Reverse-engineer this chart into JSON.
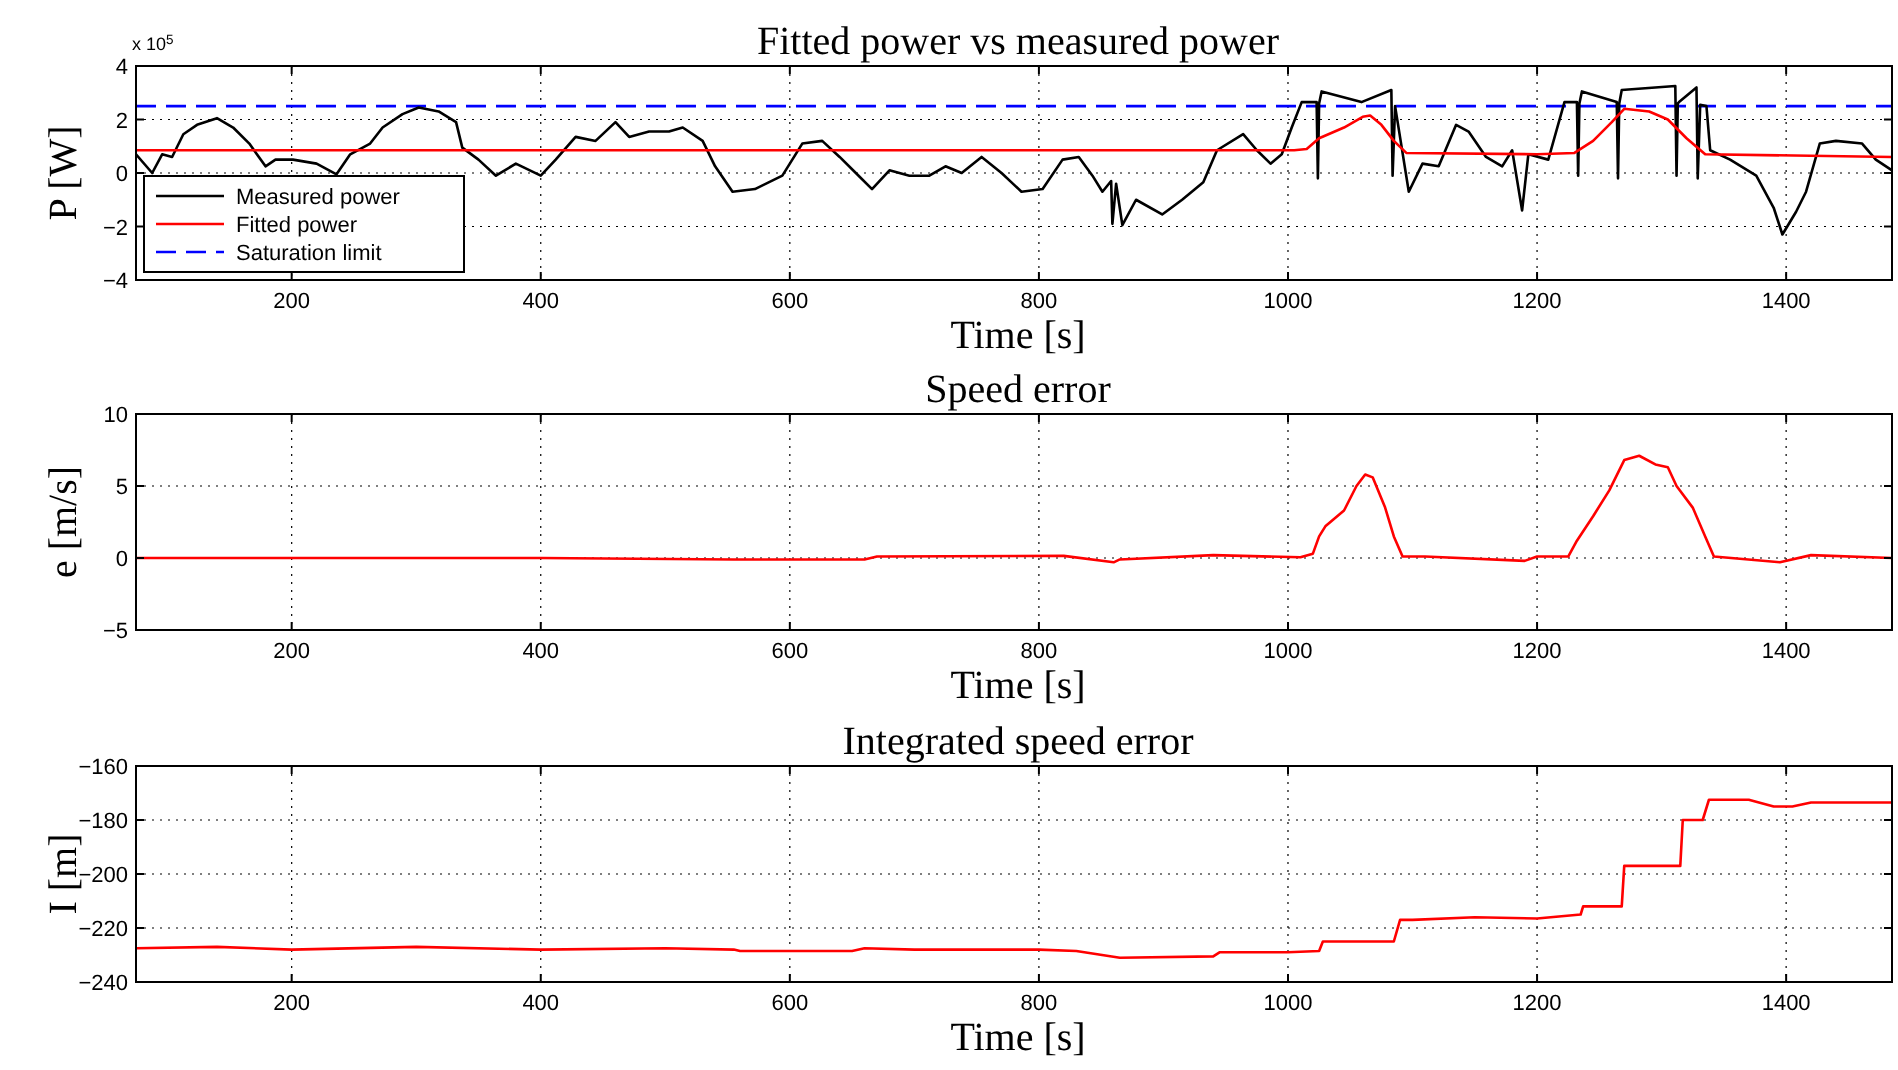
{
  "chart_data": [
    {
      "type": "line",
      "title": "Fitted power vs measured power",
      "xlabel": "Time [s]",
      "ylabel": "P [W]",
      "annotations": [
        "x 10$^{5}$"
      ],
      "xlim": [
        75,
        1485
      ],
      "xticks": [
        200,
        400,
        600,
        800,
        1000,
        1200,
        1400
      ],
      "ylim": [
        -4,
        4
      ],
      "yticks": [
        -4,
        -2,
        0,
        2,
        4
      ],
      "grid": true,
      "legend": "bottom left",
      "line_style": "solid",
      "marker": "none",
      "series": [
        {
          "name": "Measured power",
          "color": "#000000",
          "x": [
            75,
            88,
            96,
            104,
            113,
            124,
            140,
            153,
            166,
            179,
            187,
            201,
            220,
            236,
            247,
            263,
            273,
            289,
            302,
            318,
            332,
            337,
            350,
            364,
            380,
            400,
            412,
            428,
            444,
            460,
            471,
            487,
            503,
            514,
            530,
            540,
            554,
            572,
            594,
            610,
            626,
            640,
            653,
            666,
            680,
            696,
            712,
            725,
            738,
            754,
            770,
            778,
            786,
            803,
            819,
            832,
            843,
            851,
            858,
            859,
            862,
            867,
            878,
            899,
            915,
            932,
            943,
            964,
            975,
            986,
            995,
            1003,
            1011,
            1023,
            1024,
            1025,
            1027,
            1059,
            1083,
            1084,
            1086,
            1097,
            1108,
            1121,
            1135,
            1145,
            1159,
            1172,
            1180,
            1188,
            1193,
            1209,
            1222,
            1232,
            1233,
            1234,
            1236,
            1264,
            1265,
            1266,
            1268,
            1311,
            1312,
            1313,
            1314,
            1328,
            1329,
            1331,
            1336,
            1339,
            1355,
            1376,
            1390,
            1397,
            1408,
            1416,
            1427,
            1440,
            1461,
            1472,
            1485
          ],
          "values": [
            0.7,
            0,
            0.7,
            0.6,
            1.45,
            1.8,
            2.05,
            1.7,
            1.1,
            0.25,
            0.5,
            0.5,
            0.35,
            -0.05,
            0.7,
            1.1,
            1.7,
            2.2,
            2.45,
            2.3,
            1.9,
            0.95,
            0.5,
            -0.1,
            0.35,
            -0.1,
            0.5,
            1.35,
            1.2,
            1.9,
            1.35,
            1.55,
            1.55,
            1.7,
            1.2,
            0.25,
            -0.7,
            -0.6,
            -0.1,
            1.1,
            1.2,
            0.6,
            0,
            -0.6,
            0.1,
            -0.1,
            -0.1,
            0.25,
            0,
            0.6,
            0,
            -0.35,
            -0.7,
            -0.6,
            0.5,
            0.6,
            -0.1,
            -0.7,
            -0.3,
            -1.9,
            -0.4,
            -1.95,
            -1,
            -1.55,
            -1,
            -0.35,
            0.85,
            1.45,
            0.85,
            0.35,
            0.7,
            1.7,
            2.65,
            2.65,
            -0.2,
            2.6,
            3.05,
            2.65,
            3.1,
            -0.1,
            2.5,
            -0.7,
            0.35,
            0.25,
            1.8,
            1.55,
            0.6,
            0.25,
            0.85,
            -1.4,
            0.7,
            0.5,
            2.65,
            2.65,
            -0.1,
            2.6,
            3.05,
            2.65,
            -0.2,
            2.6,
            3.1,
            3.25,
            -0.1,
            2.6,
            2.65,
            3.2,
            -0.2,
            2.55,
            2.5,
            0.85,
            0.5,
            -0.1,
            -1.3,
            -2.3,
            -1.45,
            -0.7,
            1.1,
            1.2,
            1.1,
            0.5,
            0.1
          ]
        },
        {
          "name": "Fitted power",
          "color": "#ff0000",
          "x": [
            75,
            1005,
            1015,
            1025,
            1045,
            1060,
            1066,
            1075,
            1085,
            1095,
            1200,
            1230,
            1245,
            1260,
            1270,
            1290,
            1305,
            1320,
            1335,
            1485
          ],
          "values": [
            0.85,
            0.85,
            0.9,
            1.3,
            1.7,
            2.1,
            2.15,
            1.8,
            1.2,
            0.75,
            0.7,
            0.75,
            1.2,
            1.9,
            2.4,
            2.3,
            2,
            1.3,
            0.7,
            0.6
          ]
        }
      ],
      "ref_lines": [
        {
          "axis": "y",
          "value": 2.5,
          "label": "Saturation limit",
          "color": "#0000ff",
          "line_style": "dashed"
        }
      ]
    },
    {
      "type": "line",
      "title": "Speed error",
      "xlabel": "Time [s]",
      "ylabel": "e [m/s]",
      "xlim": [
        75,
        1485
      ],
      "xticks": [
        200,
        400,
        600,
        800,
        1000,
        1200,
        1400
      ],
      "ylim": [
        -5,
        10
      ],
      "yticks": [
        -5,
        0,
        5,
        10
      ],
      "grid": true,
      "line_style": "solid",
      "marker": "none",
      "series": [
        {
          "color": "#ff0000",
          "x": [
            75,
            400,
            555,
            660,
            670,
            820,
            860,
            865,
            940,
            1010,
            1020,
            1025,
            1030,
            1045,
            1055,
            1062,
            1068,
            1078,
            1085,
            1092,
            1110,
            1190,
            1200,
            1225,
            1232,
            1245,
            1258,
            1270,
            1282,
            1295,
            1305,
            1312,
            1325,
            1335,
            1342,
            1395,
            1420,
            1485
          ],
          "values": [
            0,
            0,
            -0.1,
            -0.1,
            0.1,
            0.15,
            -0.3,
            -0.1,
            0.2,
            0.05,
            0.3,
            1.5,
            2.2,
            3.3,
            5,
            5.8,
            5.6,
            3.5,
            1.5,
            0.1,
            0.1,
            -0.2,
            0.1,
            0.1,
            1.2,
            2.9,
            4.7,
            6.8,
            7.1,
            6.5,
            6.3,
            5,
            3.5,
            1.5,
            0.1,
            -0.3,
            0.2,
            0
          ]
        }
      ]
    },
    {
      "type": "line",
      "title": "Integrated speed error",
      "xlabel": "Time [s]",
      "ylabel": "I [m]",
      "xlim": [
        75,
        1485
      ],
      "xticks": [
        200,
        400,
        600,
        800,
        1000,
        1200,
        1400
      ],
      "ylim": [
        -240,
        -160
      ],
      "yticks": [
        -240,
        -220,
        -200,
        -180,
        -160
      ],
      "grid": true,
      "line_style": "solid",
      "marker": "none",
      "series": [
        {
          "color": "#ff0000",
          "x": [
            75,
            140,
            200,
            300,
            400,
            500,
            555,
            560,
            650,
            660,
            700,
            800,
            830,
            865,
            940,
            945,
            1000,
            1025,
            1028,
            1085,
            1090,
            1100,
            1150,
            1200,
            1235,
            1237,
            1268,
            1270,
            1315,
            1317,
            1333,
            1338,
            1370,
            1390,
            1405,
            1420,
            1485
          ],
          "values": [
            -227.5,
            -227,
            -228,
            -227,
            -228,
            -227.5,
            -228,
            -228.5,
            -228.5,
            -227.5,
            -228,
            -228,
            -228.5,
            -231,
            -230.5,
            -229,
            -229,
            -228.5,
            -225,
            -225,
            -217,
            -217,
            -216,
            -216.5,
            -215,
            -212,
            -212,
            -197,
            -197,
            -180,
            -180,
            -172.5,
            -172.5,
            -175,
            -175,
            -173.5,
            -173.5
          ]
        }
      ]
    }
  ]
}
